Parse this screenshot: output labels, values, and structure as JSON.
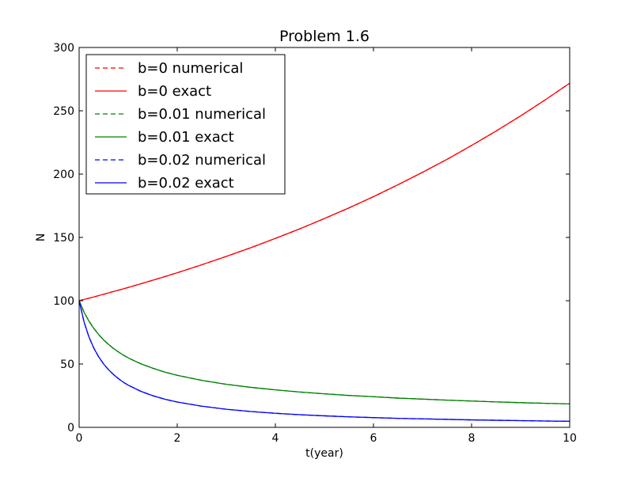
{
  "chart_data": {
    "type": "line",
    "title": "Problem 1.6",
    "xlabel": "t(year)",
    "ylabel": "N",
    "xlim": [
      0,
      10
    ],
    "ylim": [
      0,
      300
    ],
    "xticks": [
      0,
      2,
      4,
      6,
      8,
      10
    ],
    "yticks": [
      0,
      50,
      100,
      150,
      200,
      250,
      300
    ],
    "xtick_labels": [
      "0",
      "2",
      "4",
      "6",
      "8",
      "10"
    ],
    "ytick_labels": [
      "0",
      "50",
      "100",
      "150",
      "200",
      "250",
      "300"
    ],
    "grid": false,
    "legend_position": "top-left",
    "x": [
      0,
      0.1,
      0.2,
      0.3,
      0.4,
      0.5,
      0.6,
      0.7,
      0.8,
      0.9,
      1,
      1.25,
      1.5,
      1.75,
      2,
      2.5,
      3,
      3.5,
      4,
      4.5,
      5,
      5.5,
      6,
      6.5,
      7,
      7.5,
      8,
      8.5,
      9,
      9.5,
      10
    ],
    "series": [
      {
        "name": "b=0 numerical",
        "color": "#ff0000",
        "style": "dashed",
        "values": [
          100,
          101.0,
          102.0,
          103.0,
          104.1,
          105.1,
          106.2,
          107.3,
          108.3,
          109.4,
          110.5,
          113.3,
          116.2,
          119.1,
          122.1,
          128.4,
          135.0,
          141.9,
          149.2,
          156.8,
          164.9,
          173.3,
          182.2,
          191.6,
          201.4,
          211.7,
          222.6,
          234.0,
          246.0,
          258.6,
          271.8
        ]
      },
      {
        "name": "b=0 exact",
        "color": "#ff0000",
        "style": "solid",
        "values": [
          100,
          101.0,
          102.0,
          103.0,
          104.1,
          105.1,
          106.2,
          107.3,
          108.3,
          109.4,
          110.5,
          113.3,
          116.2,
          119.1,
          122.1,
          128.4,
          135.0,
          141.9,
          149.2,
          156.8,
          164.9,
          173.3,
          182.2,
          191.6,
          201.4,
          211.7,
          222.6,
          234.0,
          246.0,
          258.6,
          271.8
        ]
      },
      {
        "name": "b=0.01 numerical",
        "color": "#008000",
        "style": "dashed",
        "values": [
          100,
          91.0,
          83.9,
          78.1,
          73.2,
          69.0,
          65.5,
          62.3,
          59.6,
          57.1,
          54.9,
          50.3,
          46.7,
          43.6,
          41.1,
          37.1,
          34.0,
          31.6,
          29.6,
          27.9,
          26.5,
          25.2,
          24.2,
          23.1,
          22.3,
          21.5,
          20.8,
          20.1,
          19.5,
          19.0,
          18.5
        ]
      },
      {
        "name": "b=0.01 exact",
        "color": "#008000",
        "style": "solid",
        "values": [
          100,
          91.0,
          83.9,
          78.1,
          73.2,
          69.0,
          65.5,
          62.3,
          59.6,
          57.1,
          54.9,
          50.3,
          46.7,
          43.6,
          41.1,
          37.1,
          34.0,
          31.6,
          29.6,
          27.9,
          26.5,
          25.2,
          24.2,
          23.1,
          22.3,
          21.5,
          20.8,
          20.1,
          19.5,
          19.0,
          18.5
        ]
      },
      {
        "name": "b=0.02 numerical",
        "color": "#0000ff",
        "style": "dashed",
        "values": [
          100,
          83.3,
          71.4,
          62.5,
          55.6,
          50.0,
          45.5,
          41.7,
          38.5,
          35.7,
          33.3,
          28.6,
          25.0,
          22.2,
          20.0,
          16.7,
          14.3,
          12.5,
          11.1,
          10.0,
          9.1,
          8.3,
          7.7,
          7.1,
          6.7,
          6.3,
          5.9,
          5.6,
          5.3,
          5.0,
          4.8
        ]
      },
      {
        "name": "b=0.02 exact",
        "color": "#0000ff",
        "style": "solid",
        "values": [
          100,
          83.3,
          71.4,
          62.5,
          55.6,
          50.0,
          45.5,
          41.7,
          38.5,
          35.7,
          33.3,
          28.6,
          25.0,
          22.2,
          20.0,
          16.7,
          14.3,
          12.5,
          11.1,
          10.0,
          9.1,
          8.3,
          7.7,
          7.1,
          6.7,
          6.3,
          5.9,
          5.6,
          5.3,
          5.0,
          4.8
        ]
      }
    ]
  }
}
